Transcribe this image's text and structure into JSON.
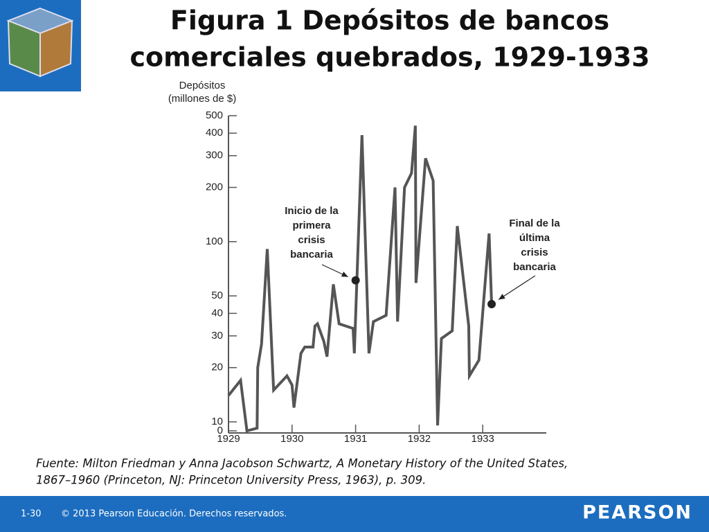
{
  "slide": {
    "title": [
      "Figura 1  Depósitos de bancos",
      "comerciales quebrados, 1929-1933"
    ],
    "source": [
      "Fuente: Milton Friedman y Anna Jacobson Schwartz, A Monetary History of the United States,",
      "1867–1960 (Princeton, NJ: Princeton University Press, 1963), p. 309."
    ],
    "page": "1-30",
    "copyright": "© 2013 Pearson Educación. Derechos reservados.",
    "brand": "PEARSON"
  },
  "chart_data": {
    "type": "line",
    "ylabel": [
      "Depósitos",
      "(millones de $)"
    ],
    "x": [
      1929.0,
      1929.19,
      1929.29,
      1929.45,
      1929.46,
      1929.52,
      1929.61,
      1929.71,
      1929.92,
      1930.0,
      1930.03,
      1930.14,
      1930.2,
      1930.33,
      1930.36,
      1930.4,
      1930.5,
      1930.55,
      1930.65,
      1930.74,
      1930.96,
      1930.98,
      1931.1,
      1931.21,
      1931.28,
      1931.48,
      1931.62,
      1931.66,
      1931.77,
      1931.88,
      1931.94,
      1931.95,
      1932.1,
      1932.22,
      1932.29,
      1932.35,
      1932.52,
      1932.6,
      1932.78,
      1932.79,
      1932.94,
      1933.1,
      1933.14
    ],
    "series": [
      {
        "color": "#555555",
        "values": [
          14,
          17,
          0,
          3,
          20,
          27,
          91,
          15,
          18,
          16,
          12,
          24,
          26,
          26,
          34,
          35,
          28,
          23,
          58,
          35,
          33,
          24,
          390,
          24,
          36,
          39,
          200,
          36,
          200,
          240,
          440,
          59,
          290,
          218,
          6,
          29,
          32,
          122,
          34,
          18,
          22,
          111,
          45
        ]
      }
    ],
    "annotations": [
      {
        "lines": [
          "Inicio de la",
          "primera",
          "crisis",
          "bancaria"
        ],
        "x": 1931.0,
        "y": 61
      },
      {
        "lines": [
          "Final de la",
          "última",
          "crisis",
          "bancaria"
        ],
        "x": 1933.14,
        "y": 45
      }
    ],
    "xlim": [
      1929,
      1934
    ],
    "xticks": [
      1929,
      1930,
      1931,
      1932,
      1933
    ],
    "ylim": [
      0,
      500
    ],
    "yticks": [
      0,
      10,
      20,
      30,
      40,
      50,
      100,
      200,
      300,
      400,
      500
    ],
    "yscale": "log"
  }
}
